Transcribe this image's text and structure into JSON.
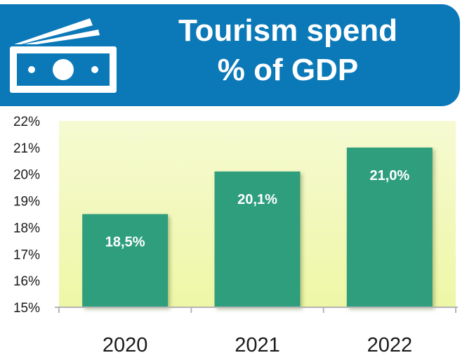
{
  "header": {
    "title_line1": "Tourism spend",
    "title_line2": "% of GDP",
    "icon": "banknote-icon",
    "bg_color": "#0b79b8"
  },
  "chart_data": {
    "type": "bar",
    "title": "Tourism spend % of GDP",
    "categories": [
      "2020",
      "2021",
      "2022"
    ],
    "values": [
      18.5,
      20.1,
      21.0
    ],
    "data_labels": [
      "18,5%",
      "20,1%",
      "21,0%"
    ],
    "y_ticks": [
      "15%",
      "16%",
      "17%",
      "18%",
      "19%",
      "20%",
      "21%",
      "22%"
    ],
    "ylim": [
      15,
      22
    ],
    "grid": false,
    "bar_color": "#2e9e7c",
    "plot_bg": "#f3f9c6"
  }
}
